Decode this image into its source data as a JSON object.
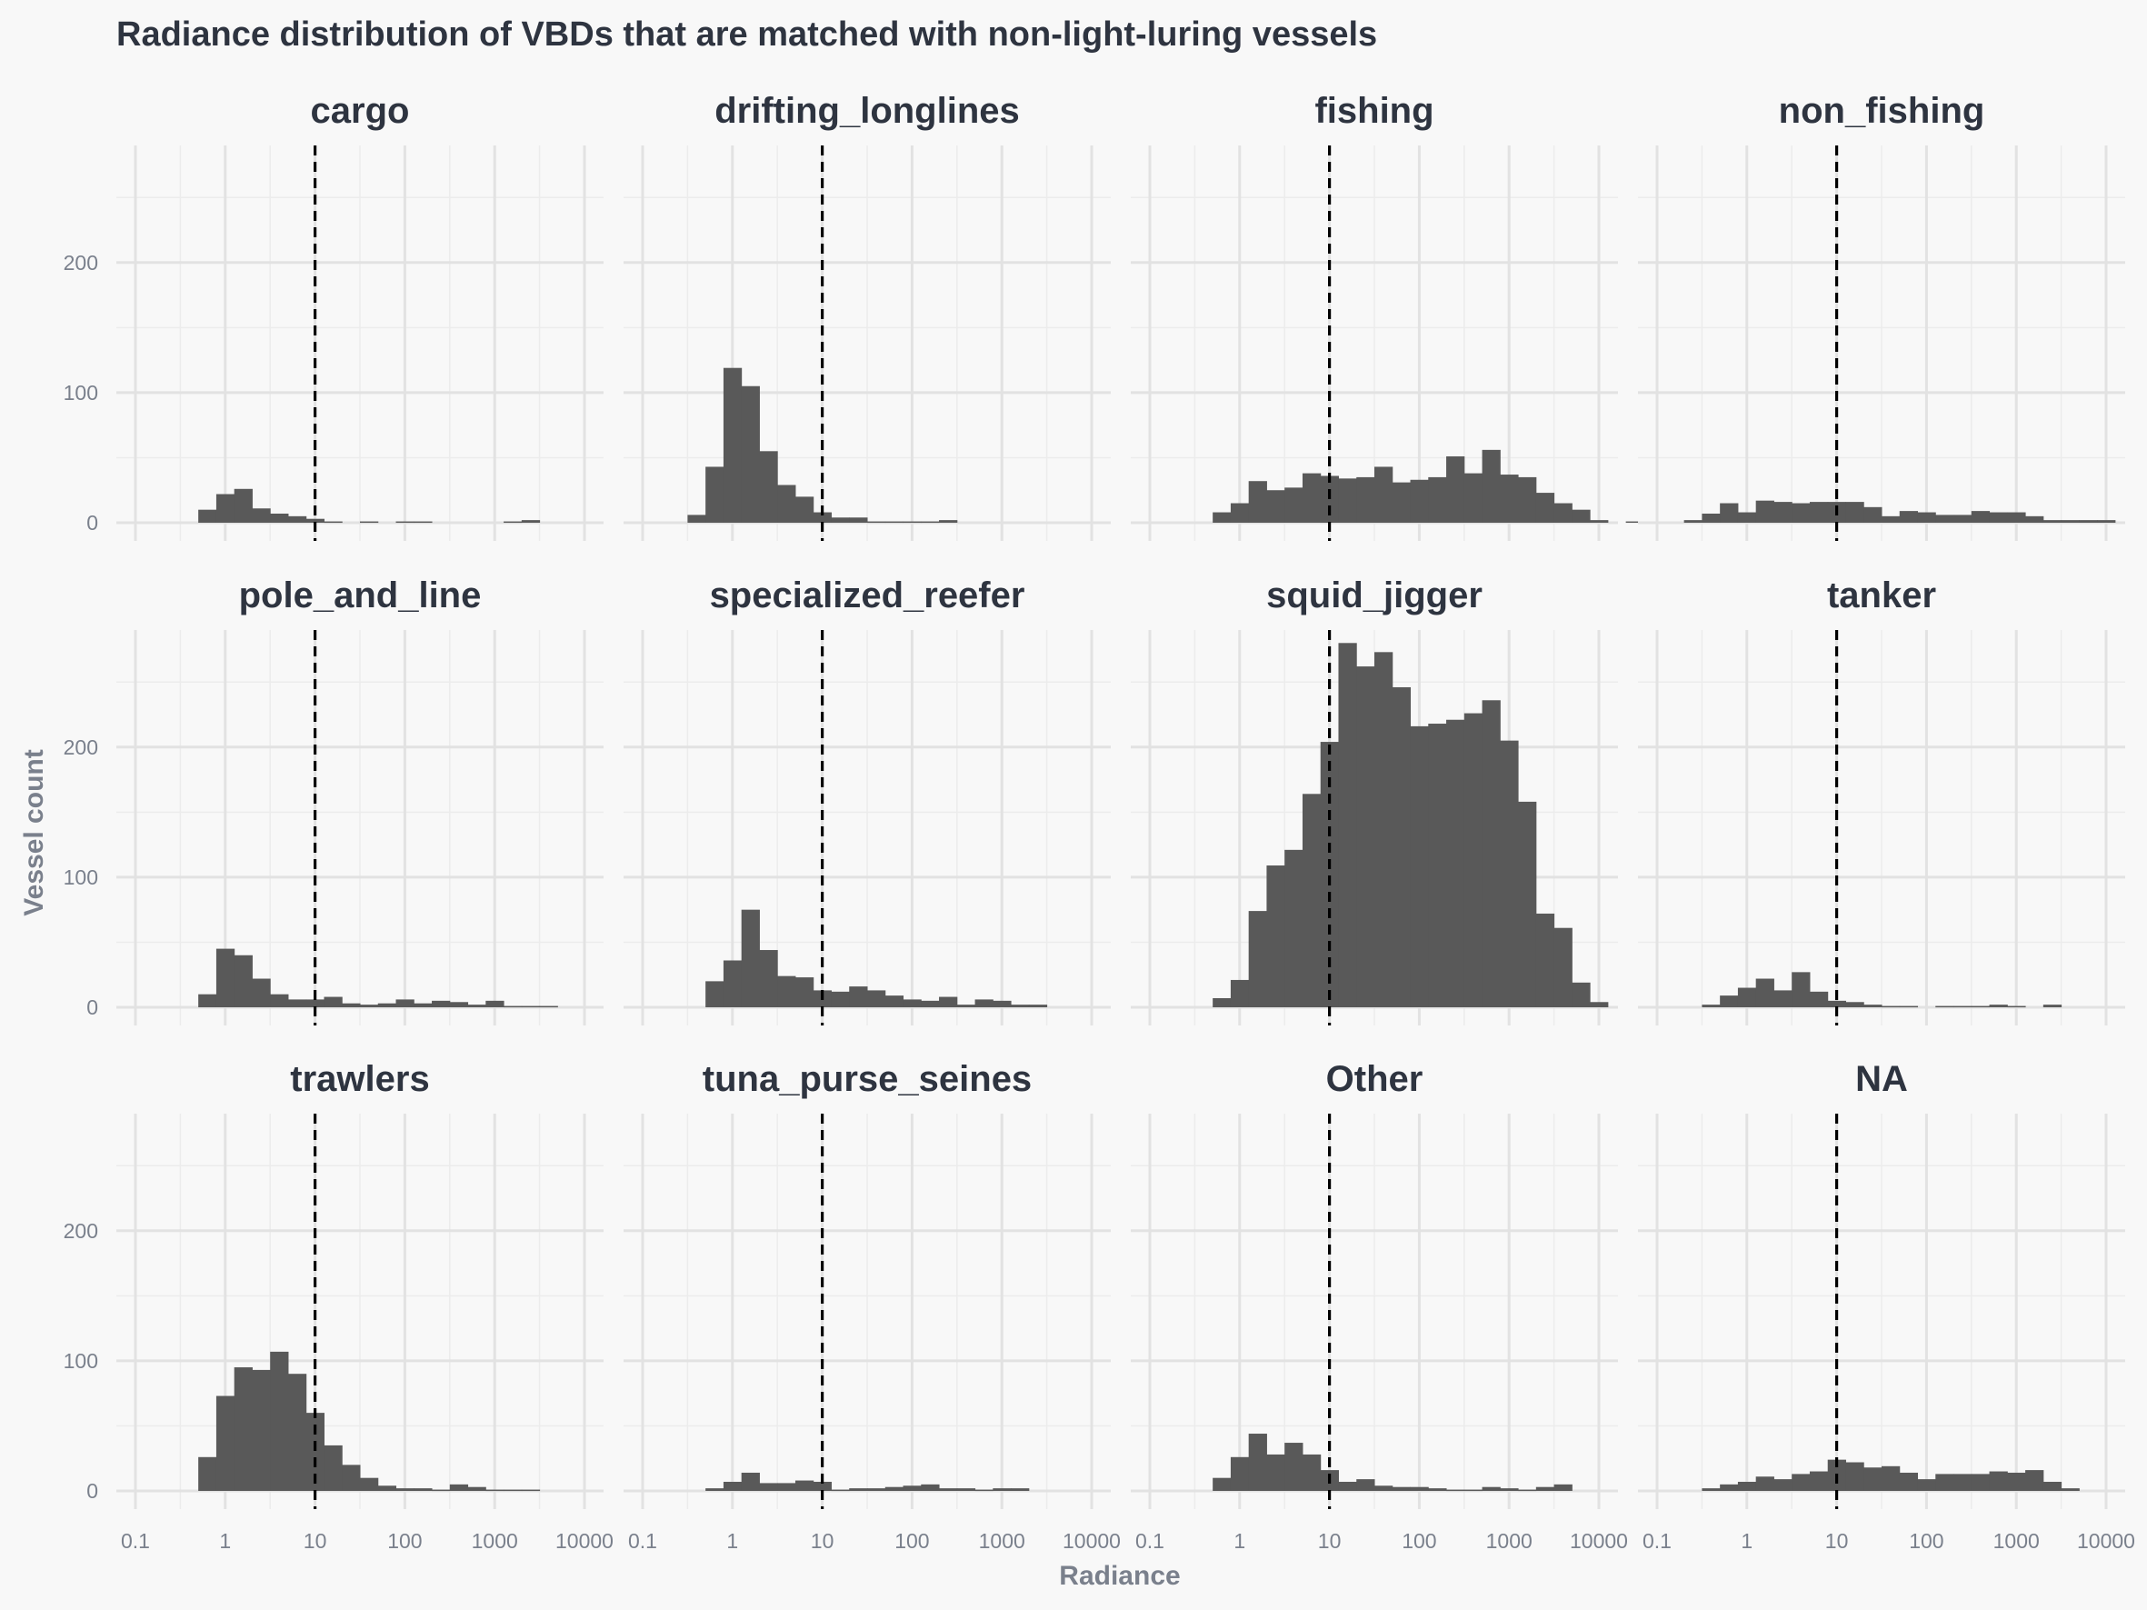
{
  "chart_data": {
    "type": "bar",
    "title": "Radiance distribution of VBDs that are matched with non-light-luring vessels",
    "xlabel": "Radiance",
    "ylabel": "Vessel count",
    "x_scale": "log10",
    "x_ticks": [
      "0.1",
      "1",
      "10",
      "100",
      "1000",
      "10000"
    ],
    "xlim": [
      0.1,
      10000
    ],
    "y_ticks": [
      "0",
      "100",
      "200"
    ],
    "ylim": [
      0,
      290
    ],
    "bin_width_log10": 0.2,
    "reference_line_x": 10,
    "grid": true,
    "legend": "none",
    "bar_color": "#595959",
    "facets": [
      {
        "name": "cargo",
        "bins": [
          [
            -0.3,
            10
          ],
          [
            -0.1,
            22
          ],
          [
            0.1,
            26
          ],
          [
            0.3,
            11
          ],
          [
            0.5,
            7
          ],
          [
            0.7,
            5
          ],
          [
            0.9,
            3
          ],
          [
            1.1,
            1
          ],
          [
            1.3,
            0
          ],
          [
            1.5,
            1
          ],
          [
            1.7,
            0
          ],
          [
            1.9,
            1
          ],
          [
            2.1,
            1
          ],
          [
            2.3,
            0
          ],
          [
            2.5,
            0
          ],
          [
            2.7,
            0
          ],
          [
            2.9,
            0
          ],
          [
            3.1,
            1
          ],
          [
            3.3,
            2
          ]
        ]
      },
      {
        "name": "drifting_longlines",
        "bins": [
          [
            -0.5,
            6
          ],
          [
            -0.3,
            43
          ],
          [
            -0.1,
            119
          ],
          [
            0.1,
            105
          ],
          [
            0.3,
            55
          ],
          [
            0.5,
            29
          ],
          [
            0.7,
            20
          ],
          [
            0.9,
            8
          ],
          [
            1.1,
            4
          ],
          [
            1.3,
            4
          ],
          [
            1.5,
            1
          ],
          [
            1.7,
            1
          ],
          [
            1.9,
            1
          ],
          [
            2.1,
            1
          ],
          [
            2.3,
            2
          ]
        ]
      },
      {
        "name": "fishing",
        "bins": [
          [
            -0.3,
            8
          ],
          [
            -0.1,
            15
          ],
          [
            0.1,
            32
          ],
          [
            0.3,
            25
          ],
          [
            0.5,
            27
          ],
          [
            0.7,
            38
          ],
          [
            0.9,
            36
          ],
          [
            1.1,
            34
          ],
          [
            1.3,
            35
          ],
          [
            1.5,
            43
          ],
          [
            1.7,
            31
          ],
          [
            1.9,
            33
          ],
          [
            2.1,
            35
          ],
          [
            2.3,
            51
          ],
          [
            2.5,
            38
          ],
          [
            2.7,
            56
          ],
          [
            2.9,
            37
          ],
          [
            3.1,
            35
          ],
          [
            3.3,
            23
          ],
          [
            3.5,
            15
          ],
          [
            3.7,
            10
          ],
          [
            3.9,
            2
          ],
          [
            4.1,
            0
          ],
          [
            4.3,
            1
          ]
        ]
      },
      {
        "name": "non_fishing",
        "bins": [
          [
            -0.7,
            2
          ],
          [
            -0.5,
            7
          ],
          [
            -0.3,
            15
          ],
          [
            -0.1,
            8
          ],
          [
            0.1,
            17
          ],
          [
            0.3,
            16
          ],
          [
            0.5,
            15
          ],
          [
            0.7,
            16
          ],
          [
            0.9,
            16
          ],
          [
            1.1,
            16
          ],
          [
            1.3,
            12
          ],
          [
            1.5,
            5
          ],
          [
            1.7,
            9
          ],
          [
            1.9,
            8
          ],
          [
            2.1,
            6
          ],
          [
            2.3,
            6
          ],
          [
            2.5,
            9
          ],
          [
            2.7,
            8
          ],
          [
            2.9,
            8
          ],
          [
            3.1,
            5
          ],
          [
            3.3,
            2
          ],
          [
            3.5,
            2
          ],
          [
            3.7,
            2
          ],
          [
            3.9,
            2
          ]
        ]
      },
      {
        "name": "pole_and_line",
        "bins": [
          [
            -0.3,
            10
          ],
          [
            -0.1,
            45
          ],
          [
            0.1,
            40
          ],
          [
            0.3,
            22
          ],
          [
            0.5,
            10
          ],
          [
            0.7,
            6
          ],
          [
            0.9,
            6
          ],
          [
            1.1,
            8
          ],
          [
            1.3,
            3
          ],
          [
            1.5,
            2
          ],
          [
            1.7,
            3
          ],
          [
            1.9,
            6
          ],
          [
            2.1,
            3
          ],
          [
            2.3,
            5
          ],
          [
            2.5,
            4
          ],
          [
            2.7,
            2
          ],
          [
            2.9,
            5
          ],
          [
            3.1,
            1
          ],
          [
            3.3,
            1
          ],
          [
            3.5,
            1
          ]
        ]
      },
      {
        "name": "specialized_reefer",
        "bins": [
          [
            -0.3,
            20
          ],
          [
            -0.1,
            36
          ],
          [
            0.1,
            75
          ],
          [
            0.3,
            44
          ],
          [
            0.5,
            24
          ],
          [
            0.7,
            23
          ],
          [
            0.9,
            13
          ],
          [
            1.1,
            12
          ],
          [
            1.3,
            16
          ],
          [
            1.5,
            13
          ],
          [
            1.7,
            9
          ],
          [
            1.9,
            6
          ],
          [
            2.1,
            5
          ],
          [
            2.3,
            8
          ],
          [
            2.5,
            2
          ],
          [
            2.7,
            6
          ],
          [
            2.9,
            5
          ],
          [
            3.1,
            2
          ],
          [
            3.3,
            2
          ]
        ]
      },
      {
        "name": "squid_jigger",
        "bins": [
          [
            -0.3,
            7
          ],
          [
            -0.1,
            21
          ],
          [
            0.1,
            74
          ],
          [
            0.3,
            109
          ],
          [
            0.5,
            121
          ],
          [
            0.7,
            164
          ],
          [
            0.9,
            204
          ],
          [
            1.1,
            280
          ],
          [
            1.3,
            262
          ],
          [
            1.5,
            273
          ],
          [
            1.7,
            246
          ],
          [
            1.9,
            216
          ],
          [
            2.1,
            218
          ],
          [
            2.3,
            221
          ],
          [
            2.5,
            226
          ],
          [
            2.7,
            236
          ],
          [
            2.9,
            205
          ],
          [
            3.1,
            158
          ],
          [
            3.3,
            72
          ],
          [
            3.5,
            61
          ],
          [
            3.7,
            19
          ],
          [
            3.9,
            4
          ]
        ]
      },
      {
        "name": "tanker",
        "bins": [
          [
            -0.5,
            2
          ],
          [
            -0.3,
            9
          ],
          [
            -0.1,
            15
          ],
          [
            0.1,
            22
          ],
          [
            0.3,
            13
          ],
          [
            0.5,
            27
          ],
          [
            0.7,
            12
          ],
          [
            0.9,
            5
          ],
          [
            1.1,
            4
          ],
          [
            1.3,
            2
          ],
          [
            1.5,
            1
          ],
          [
            1.7,
            1
          ],
          [
            1.9,
            0
          ],
          [
            2.1,
            1
          ],
          [
            2.3,
            1
          ],
          [
            2.5,
            1
          ],
          [
            2.7,
            2
          ],
          [
            2.9,
            1
          ],
          [
            3.1,
            0
          ],
          [
            3.3,
            2
          ]
        ]
      },
      {
        "name": "trawlers",
        "bins": [
          [
            -0.3,
            26
          ],
          [
            -0.1,
            73
          ],
          [
            0.1,
            95
          ],
          [
            0.3,
            93
          ],
          [
            0.5,
            107
          ],
          [
            0.7,
            90
          ],
          [
            0.9,
            60
          ],
          [
            1.1,
            35
          ],
          [
            1.3,
            20
          ],
          [
            1.5,
            10
          ],
          [
            1.7,
            4
          ],
          [
            1.9,
            2
          ],
          [
            2.1,
            2
          ],
          [
            2.3,
            1
          ],
          [
            2.5,
            5
          ],
          [
            2.7,
            3
          ],
          [
            2.9,
            1
          ],
          [
            3.1,
            1
          ],
          [
            3.3,
            1
          ]
        ]
      },
      {
        "name": "tuna_purse_seines",
        "bins": [
          [
            -0.3,
            2
          ],
          [
            -0.1,
            7
          ],
          [
            0.1,
            14
          ],
          [
            0.3,
            6
          ],
          [
            0.5,
            6
          ],
          [
            0.7,
            8
          ],
          [
            0.9,
            7
          ],
          [
            1.1,
            1
          ],
          [
            1.3,
            2
          ],
          [
            1.5,
            2
          ],
          [
            1.7,
            3
          ],
          [
            1.9,
            4
          ],
          [
            2.1,
            5
          ],
          [
            2.3,
            2
          ],
          [
            2.5,
            2
          ],
          [
            2.7,
            1
          ],
          [
            2.9,
            2
          ],
          [
            3.1,
            2
          ]
        ]
      },
      {
        "name": "Other",
        "bins": [
          [
            -0.3,
            10
          ],
          [
            -0.1,
            26
          ],
          [
            0.1,
            44
          ],
          [
            0.3,
            28
          ],
          [
            0.5,
            37
          ],
          [
            0.7,
            28
          ],
          [
            0.9,
            16
          ],
          [
            1.1,
            7
          ],
          [
            1.3,
            9
          ],
          [
            1.5,
            4
          ],
          [
            1.7,
            3
          ],
          [
            1.9,
            3
          ],
          [
            2.1,
            2
          ],
          [
            2.3,
            1
          ],
          [
            2.5,
            1
          ],
          [
            2.7,
            3
          ],
          [
            2.9,
            2
          ],
          [
            3.1,
            1
          ],
          [
            3.3,
            3
          ],
          [
            3.5,
            5
          ]
        ]
      },
      {
        "name": "NA",
        "bins": [
          [
            -0.5,
            2
          ],
          [
            -0.3,
            5
          ],
          [
            -0.1,
            7
          ],
          [
            0.1,
            11
          ],
          [
            0.3,
            9
          ],
          [
            0.5,
            13
          ],
          [
            0.7,
            15
          ],
          [
            0.9,
            24
          ],
          [
            1.1,
            22
          ],
          [
            1.3,
            18
          ],
          [
            1.5,
            19
          ],
          [
            1.7,
            14
          ],
          [
            1.9,
            9
          ],
          [
            2.1,
            13
          ],
          [
            2.3,
            13
          ],
          [
            2.5,
            13
          ],
          [
            2.7,
            15
          ],
          [
            2.9,
            14
          ],
          [
            3.1,
            16
          ],
          [
            3.3,
            7
          ],
          [
            3.5,
            2
          ]
        ]
      }
    ]
  }
}
